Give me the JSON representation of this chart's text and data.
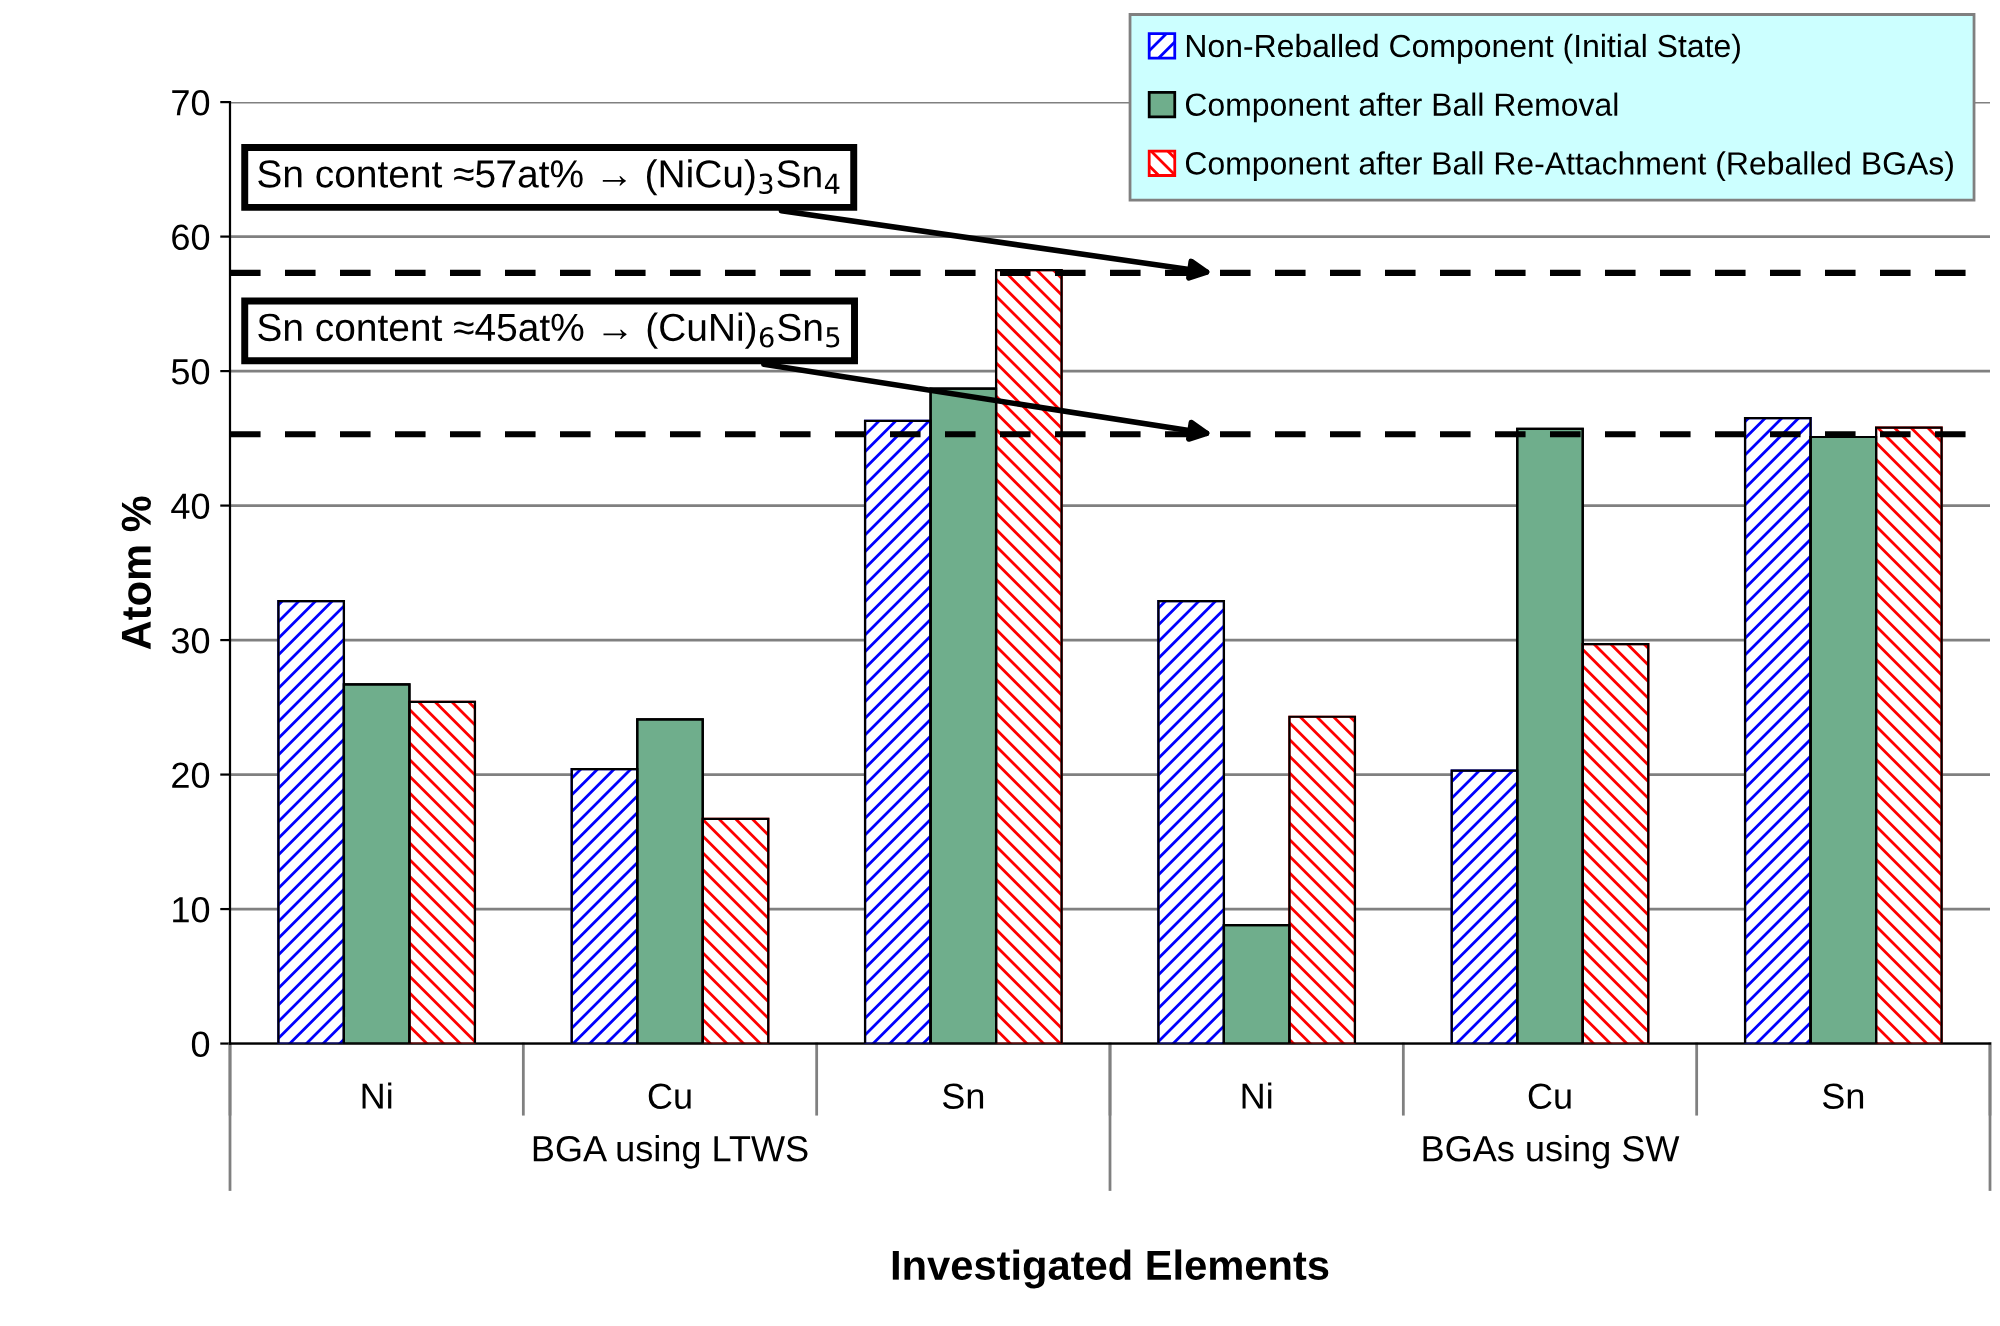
{
  "chart_data": {
    "type": "bar",
    "xlabel": "Investigated Elements",
    "ylabel": "Atom %",
    "categories": [
      "Ni",
      "Cu",
      "Sn",
      "Ni",
      "Cu",
      "Sn"
    ],
    "series": [
      {
        "name": "Non-Reballed Component (Initial State)",
        "color": "#0000ff",
        "values": [
          32.9,
          20.4,
          46.3,
          32.9,
          20.3,
          46.5
        ]
      },
      {
        "name": "Component after Ball Removal",
        "color": "#6fae8c",
        "values": [
          26.7,
          24.1,
          48.7,
          8.8,
          45.7,
          45.1
        ]
      },
      {
        "name": "Component after Ball Re-Attachment (Reballed BGAs)",
        "color": "#ff0000",
        "values": [
          25.4,
          16.7,
          57.5,
          24.3,
          29.7,
          45.8
        ]
      }
    ],
    "ylim": [
      0,
      70
    ],
    "yticks": [
      0,
      10,
      20,
      30,
      40,
      50,
      60,
      70
    ],
    "grid": "y",
    "legend": "top right",
    "ref_lines": [
      {
        "axis": "y",
        "value": 57.3,
        "color": "#000000",
        "line_style": "dashed"
      },
      {
        "axis": "y",
        "value": 45.3,
        "color": "#000000",
        "line_style": "dashed"
      }
    ],
    "annotations": [
      "BGA using LTWS",
      "BGAs using SW",
      {
        "text": "Sn content ≈57at% → (NiCu)$_{3}$Sn$_{4}$",
        "y": 57.3
      },
      {
        "text": "Sn content ≈45at% → (CuNi)$_{6}$Sn$_{5}$",
        "y": 45.3
      }
    ]
  }
}
